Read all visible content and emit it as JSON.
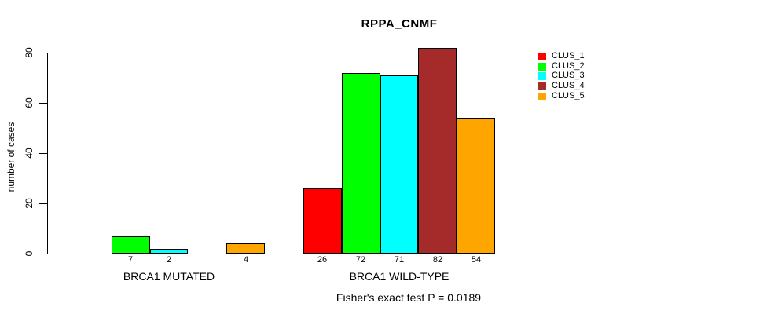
{
  "title": "RPPA_CNMF",
  "y_axis": {
    "label": "number of cases",
    "ticks": [
      "0",
      "20",
      "40",
      "60",
      "80"
    ]
  },
  "annotation": "Fisher's exact test P = 0.0189",
  "legend": {
    "items": [
      {
        "label": "CLUS_1",
        "color": "#FF0000"
      },
      {
        "label": "CLUS_2",
        "color": "#00FF00"
      },
      {
        "label": "CLUS_3",
        "color": "#00FFFF"
      },
      {
        "label": "CLUS_4",
        "color": "#A52A2A"
      },
      {
        "label": "CLUS_5",
        "color": "#FFA500"
      }
    ]
  },
  "chart_data": {
    "type": "bar",
    "title": "RPPA_CNMF",
    "ylabel": "number of cases",
    "xlabel": "",
    "ylim": [
      0,
      80
    ],
    "yticks": [
      0,
      20,
      40,
      60,
      80
    ],
    "grid": false,
    "legend_position": "right",
    "categories": [
      "BRCA1 MUTATED",
      "BRCA1 WILD-TYPE"
    ],
    "series": [
      {
        "name": "CLUS_1",
        "color": "#FF0000",
        "values": [
          0,
          26
        ]
      },
      {
        "name": "CLUS_2",
        "color": "#00FF00",
        "values": [
          7,
          72
        ]
      },
      {
        "name": "CLUS_3",
        "color": "#00FFFF",
        "values": [
          2,
          71
        ]
      },
      {
        "name": "CLUS_4",
        "color": "#A52A2A",
        "values": [
          0,
          82
        ]
      },
      {
        "name": "CLUS_5",
        "color": "#FFA500",
        "values": [
          4,
          54
        ]
      }
    ],
    "bar_value_labels_shown": true,
    "zero_bars_unlabeled": true,
    "annotation": "Fisher's exact test P = 0.0189"
  }
}
